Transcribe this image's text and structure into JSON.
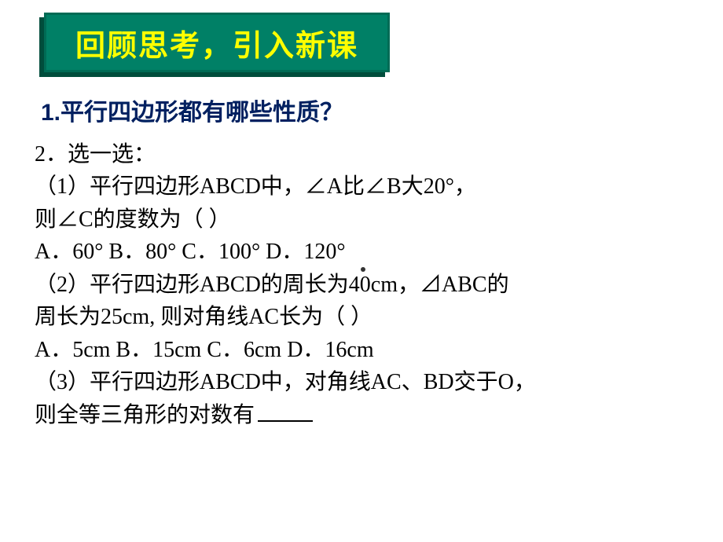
{
  "colors": {
    "title_bg": "#008066",
    "title_border": "#006b55",
    "title_shadow": "#004d3c",
    "title_text": "#ffff00",
    "q1_text": "#002060",
    "body_text": "#000000",
    "background": "#ffffff"
  },
  "typography": {
    "title_fontsize": 38,
    "q1_fontsize": 30,
    "body_fontsize": 28,
    "body_lineheight": 1.48
  },
  "title": "回顾思考，引入新课",
  "q1": "1.平行四边形都有哪些性质？",
  "body": {
    "l0": "2．选一选：",
    "l1": "（1）平行四边形ABCD中，∠A比∠B大20°，",
    "l2": "则∠C的度数为（ ）",
    "l3": " A．60°   B．80°  C．100°  D．120°",
    "l4": "（2）平行四边形ABCD的周长为40cm，⊿ABC的",
    "l5": "周长为25cm, 则对角线AC长为（ ）",
    "l6": " A．5cm   B．15cm   C．6cm  D．16cm",
    "l7": "（3）平行四边形ABCD中，对角线AC、BD交于O，",
    "l8_prefix": "则全等三角形的对数有"
  }
}
